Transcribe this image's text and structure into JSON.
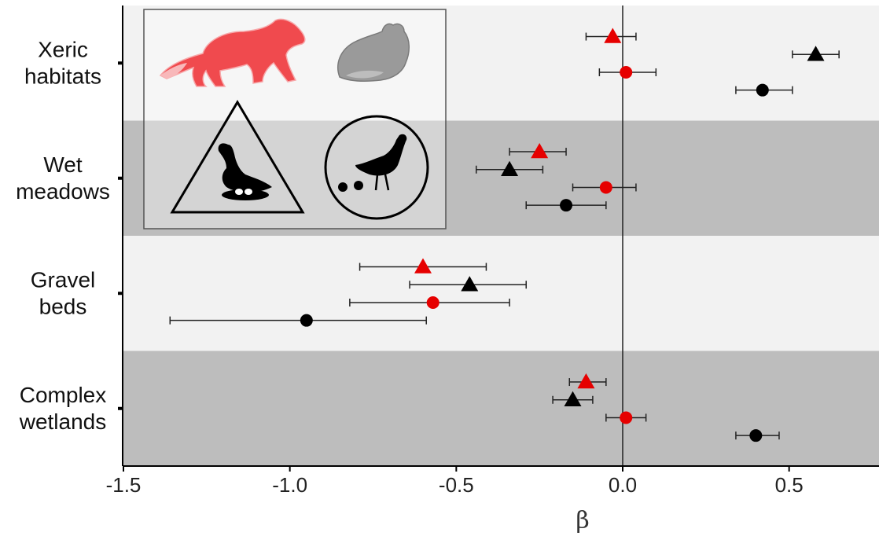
{
  "chart_data": {
    "type": "scatter",
    "title": "",
    "xlabel": "β",
    "ylabel": "",
    "xlim": [
      -1.5,
      0.75
    ],
    "x_ticks": [
      "-1.5",
      "-1.0",
      "-0.5",
      "0.0",
      "0.5"
    ],
    "x_tick_values": [
      -1.5,
      -1.0,
      -0.5,
      0.0,
      0.5
    ],
    "reference_line_x": 0,
    "grid": false,
    "legend": "inset pictograms top-left",
    "legend_items": [
      {
        "icon": "marten-icon",
        "color": "#e8474c",
        "meaning": "red points"
      },
      {
        "icon": "arctic-fox-icon",
        "color": "#888888",
        "meaning": "black points"
      },
      {
        "icon": "goose-nest-triangle-icon",
        "marker": "triangle"
      },
      {
        "icon": "goose-brood-circle-icon",
        "marker": "circle"
      }
    ],
    "colors": {
      "red": "#e60000",
      "black": "#000000",
      "band_light": "#f2f2f2",
      "band_dark": "#bdbdbd"
    },
    "categories": [
      {
        "label": [
          "Xeric",
          "habitats"
        ],
        "band": "light",
        "points": [
          {
            "marker": "triangle",
            "color": "red",
            "value": -0.03,
            "low": -0.11,
            "high": 0.04
          },
          {
            "marker": "triangle",
            "color": "black",
            "value": 0.58,
            "low": 0.51,
            "high": 0.65
          },
          {
            "marker": "circle",
            "color": "red",
            "value": 0.01,
            "low": -0.07,
            "high": 0.1
          },
          {
            "marker": "circle",
            "color": "black",
            "value": 0.42,
            "low": 0.34,
            "high": 0.51
          }
        ]
      },
      {
        "label": [
          "Wet",
          "meadows"
        ],
        "band": "dark",
        "points": [
          {
            "marker": "triangle",
            "color": "red",
            "value": -0.25,
            "low": -0.34,
            "high": -0.17
          },
          {
            "marker": "triangle",
            "color": "black",
            "value": -0.34,
            "low": -0.44,
            "high": -0.24
          },
          {
            "marker": "circle",
            "color": "red",
            "value": -0.05,
            "low": -0.15,
            "high": 0.04
          },
          {
            "marker": "circle",
            "color": "black",
            "value": -0.17,
            "low": -0.29,
            "high": -0.05
          }
        ]
      },
      {
        "label": [
          "Gravel",
          "beds"
        ],
        "band": "light",
        "points": [
          {
            "marker": "triangle",
            "color": "red",
            "value": -0.6,
            "low": -0.79,
            "high": -0.41
          },
          {
            "marker": "triangle",
            "color": "black",
            "value": -0.46,
            "low": -0.64,
            "high": -0.29
          },
          {
            "marker": "circle",
            "color": "red",
            "value": -0.57,
            "low": -0.82,
            "high": -0.34
          },
          {
            "marker": "circle",
            "color": "black",
            "value": -0.95,
            "low": -1.36,
            "high": -0.59
          }
        ]
      },
      {
        "label": [
          "Complex",
          "wetlands"
        ],
        "band": "dark",
        "points": [
          {
            "marker": "triangle",
            "color": "red",
            "value": -0.11,
            "low": -0.16,
            "high": -0.05
          },
          {
            "marker": "triangle",
            "color": "black",
            "value": -0.15,
            "low": -0.21,
            "high": -0.09
          },
          {
            "marker": "circle",
            "color": "red",
            "value": 0.01,
            "low": -0.05,
            "high": 0.07
          },
          {
            "marker": "circle",
            "color": "black",
            "value": 0.4,
            "low": 0.34,
            "high": 0.47
          }
        ]
      }
    ]
  }
}
